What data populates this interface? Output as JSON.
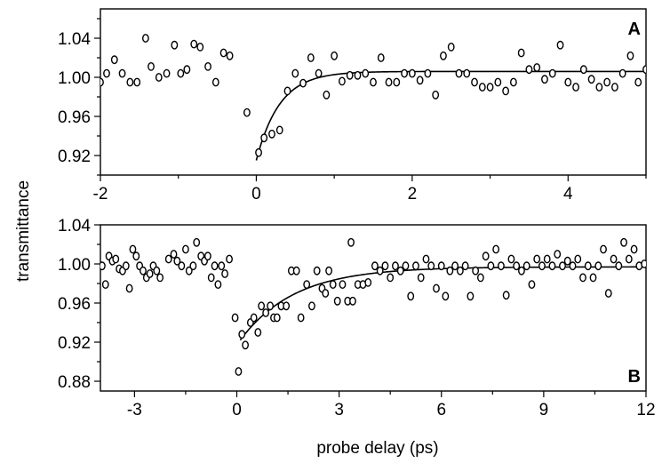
{
  "figure": {
    "ylabel": "transmittance",
    "xlabel": "probe delay (ps)"
  },
  "chart_data": [
    {
      "type": "scatter",
      "panel": "A",
      "xlim": [
        -2,
        5
      ],
      "ylim": [
        0.9,
        1.07
      ],
      "xticks": [
        -2,
        0,
        2,
        4
      ],
      "xtick_labels": [
        "-2",
        "0",
        "2",
        "4"
      ],
      "yticks": [
        0.92,
        0.96,
        1.0,
        1.04
      ],
      "ytick_labels": [
        "0.92",
        "0.96",
        "1.00",
        "1.04"
      ],
      "points": [
        [
          -2.0,
          0.995
        ],
        [
          -1.92,
          1.004
        ],
        [
          -1.82,
          1.018
        ],
        [
          -1.72,
          1.004
        ],
        [
          -1.62,
          0.995
        ],
        [
          -1.53,
          0.995
        ],
        [
          -1.42,
          1.04
        ],
        [
          -1.35,
          1.011
        ],
        [
          -1.25,
          1.0
        ],
        [
          -1.15,
          1.004
        ],
        [
          -1.05,
          1.033
        ],
        [
          -0.97,
          1.004
        ],
        [
          -0.89,
          1.008
        ],
        [
          -0.8,
          1.034
        ],
        [
          -0.72,
          1.031
        ],
        [
          -0.62,
          1.011
        ],
        [
          -0.52,
          0.995
        ],
        [
          -0.42,
          1.025
        ],
        [
          -0.34,
          1.022
        ],
        [
          -0.12,
          0.964
        ],
        [
          0.03,
          0.923
        ],
        [
          0.1,
          0.938
        ],
        [
          0.2,
          0.942
        ],
        [
          0.3,
          0.946
        ],
        [
          0.4,
          0.986
        ],
        [
          0.5,
          1.004
        ],
        [
          0.6,
          0.994
        ],
        [
          0.7,
          1.02
        ],
        [
          0.8,
          1.004
        ],
        [
          0.9,
          0.982
        ],
        [
          1.0,
          1.022
        ],
        [
          1.1,
          0.996
        ],
        [
          1.2,
          1.002
        ],
        [
          1.3,
          1.002
        ],
        [
          1.4,
          1.004
        ],
        [
          1.5,
          0.995
        ],
        [
          1.6,
          1.02
        ],
        [
          1.7,
          0.995
        ],
        [
          1.8,
          0.995
        ],
        [
          1.9,
          1.004
        ],
        [
          2.0,
          1.004
        ],
        [
          2.1,
          0.997
        ],
        [
          2.2,
          1.004
        ],
        [
          2.3,
          0.982
        ],
        [
          2.4,
          1.022
        ],
        [
          2.5,
          1.031
        ],
        [
          2.6,
          1.004
        ],
        [
          2.7,
          1.004
        ],
        [
          2.8,
          0.995
        ],
        [
          2.9,
          0.99
        ],
        [
          3.0,
          0.99
        ],
        [
          3.1,
          0.995
        ],
        [
          3.2,
          0.986
        ],
        [
          3.3,
          0.995
        ],
        [
          3.4,
          1.025
        ],
        [
          3.5,
          1.008
        ],
        [
          3.6,
          1.01
        ],
        [
          3.7,
          0.998
        ],
        [
          3.8,
          1.004
        ],
        [
          3.9,
          1.033
        ],
        [
          4.0,
          0.995
        ],
        [
          4.1,
          0.99
        ],
        [
          4.2,
          1.008
        ],
        [
          4.3,
          0.998
        ],
        [
          4.4,
          0.99
        ],
        [
          4.5,
          0.995
        ],
        [
          4.6,
          0.99
        ],
        [
          4.7,
          1.004
        ],
        [
          4.8,
          1.022
        ],
        [
          4.9,
          0.995
        ],
        [
          5.0,
          1.008
        ]
      ],
      "fit": {
        "t0": 0,
        "y0": 0.915,
        "yinf": 1.006,
        "tau": 0.3
      }
    },
    {
      "type": "scatter",
      "panel": "B",
      "xlim": [
        -4,
        12
      ],
      "ylim": [
        0.87,
        1.04
      ],
      "xticks": [
        -3,
        0,
        3,
        6,
        9,
        12
      ],
      "xtick_labels": [
        "-3",
        "0",
        "3",
        "6",
        "9",
        "12"
      ],
      "yticks": [
        0.88,
        0.92,
        0.96,
        1.0,
        1.04
      ],
      "ytick_labels": [
        "0.88",
        "0.92",
        "0.96",
        "1.00",
        "1.04"
      ],
      "points": [
        [
          -3.95,
          0.998
        ],
        [
          -3.85,
          0.979
        ],
        [
          -3.75,
          1.008
        ],
        [
          -3.65,
          1.003
        ],
        [
          -3.55,
          1.005
        ],
        [
          -3.45,
          0.995
        ],
        [
          -3.35,
          0.993
        ],
        [
          -3.25,
          0.998
        ],
        [
          -3.15,
          0.975
        ],
        [
          -3.05,
          1.015
        ],
        [
          -2.95,
          1.008
        ],
        [
          -2.85,
          0.998
        ],
        [
          -2.75,
          0.993
        ],
        [
          -2.65,
          0.986
        ],
        [
          -2.55,
          0.99
        ],
        [
          -2.45,
          0.998
        ],
        [
          -2.35,
          0.993
        ],
        [
          -2.25,
          0.986
        ],
        [
          -2.0,
          1.005
        ],
        [
          -1.85,
          1.01
        ],
        [
          -1.75,
          1.003
        ],
        [
          -1.62,
          0.998
        ],
        [
          -1.5,
          1.015
        ],
        [
          -1.4,
          0.993
        ],
        [
          -1.28,
          0.998
        ],
        [
          -1.18,
          1.022
        ],
        [
          -1.05,
          1.008
        ],
        [
          -0.95,
          1.003
        ],
        [
          -0.85,
          1.008
        ],
        [
          -0.75,
          0.986
        ],
        [
          -0.65,
          0.998
        ],
        [
          -0.55,
          0.979
        ],
        [
          -0.45,
          0.998
        ],
        [
          -0.35,
          0.99
        ],
        [
          -0.22,
          1.005
        ],
        [
          -0.05,
          0.945
        ],
        [
          0.05,
          0.89
        ],
        [
          0.15,
          0.928
        ],
        [
          0.25,
          0.917
        ],
        [
          0.4,
          0.94
        ],
        [
          0.5,
          0.945
        ],
        [
          0.62,
          0.93
        ],
        [
          0.72,
          0.957
        ],
        [
          0.85,
          0.95
        ],
        [
          0.98,
          0.957
        ],
        [
          1.08,
          0.945
        ],
        [
          1.18,
          0.945
        ],
        [
          1.3,
          0.957
        ],
        [
          1.45,
          0.957
        ],
        [
          1.6,
          0.993
        ],
        [
          1.75,
          0.993
        ],
        [
          1.88,
          0.945
        ],
        [
          2.05,
          0.979
        ],
        [
          2.2,
          0.957
        ],
        [
          2.35,
          0.993
        ],
        [
          2.5,
          0.975
        ],
        [
          2.6,
          0.97
        ],
        [
          2.7,
          0.993
        ],
        [
          2.82,
          0.979
        ],
        [
          2.95,
          0.962
        ],
        [
          3.1,
          0.979
        ],
        [
          3.25,
          0.962
        ],
        [
          3.4,
          0.962
        ],
        [
          3.55,
          0.979
        ],
        [
          3.7,
          0.979
        ],
        [
          3.85,
          0.981
        ],
        [
          3.35,
          1.022
        ],
        [
          4.05,
          0.998
        ],
        [
          4.2,
          0.993
        ],
        [
          4.35,
          0.998
        ],
        [
          4.5,
          0.986
        ],
        [
          4.65,
          0.998
        ],
        [
          4.8,
          0.993
        ],
        [
          4.95,
          0.998
        ],
        [
          5.1,
          0.967
        ],
        [
          5.25,
          0.998
        ],
        [
          5.4,
          0.986
        ],
        [
          5.55,
          1.005
        ],
        [
          5.7,
          0.998
        ],
        [
          5.85,
          0.975
        ],
        [
          6.0,
          0.998
        ],
        [
          6.12,
          0.967
        ],
        [
          6.25,
          0.993
        ],
        [
          6.4,
          0.998
        ],
        [
          6.55,
          0.993
        ],
        [
          6.7,
          0.998
        ],
        [
          6.85,
          0.967
        ],
        [
          7.0,
          0.993
        ],
        [
          7.15,
          0.986
        ],
        [
          7.3,
          1.008
        ],
        [
          7.45,
          0.998
        ],
        [
          7.6,
          1.015
        ],
        [
          7.75,
          0.998
        ],
        [
          7.9,
          0.968
        ],
        [
          8.05,
          1.005
        ],
        [
          8.2,
          0.998
        ],
        [
          8.35,
          0.993
        ],
        [
          8.5,
          0.998
        ],
        [
          8.65,
          0.979
        ],
        [
          8.8,
          1.005
        ],
        [
          8.95,
          0.998
        ],
        [
          9.1,
          1.005
        ],
        [
          9.25,
          0.998
        ],
        [
          9.4,
          1.01
        ],
        [
          9.55,
          0.998
        ],
        [
          9.7,
          1.003
        ],
        [
          9.85,
          0.998
        ],
        [
          10.0,
          1.005
        ],
        [
          10.15,
          0.986
        ],
        [
          10.3,
          0.998
        ],
        [
          10.45,
          0.986
        ],
        [
          10.6,
          0.998
        ],
        [
          10.75,
          1.015
        ],
        [
          10.9,
          0.97
        ],
        [
          11.05,
          1.005
        ],
        [
          11.2,
          0.998
        ],
        [
          11.35,
          1.022
        ],
        [
          11.5,
          1.005
        ],
        [
          11.65,
          1.015
        ],
        [
          11.8,
          0.998
        ],
        [
          11.95,
          1.0
        ]
      ],
      "fit": {
        "t0": 0.1,
        "y0": 0.922,
        "yinf": 0.997,
        "tau": 1.6
      }
    }
  ]
}
